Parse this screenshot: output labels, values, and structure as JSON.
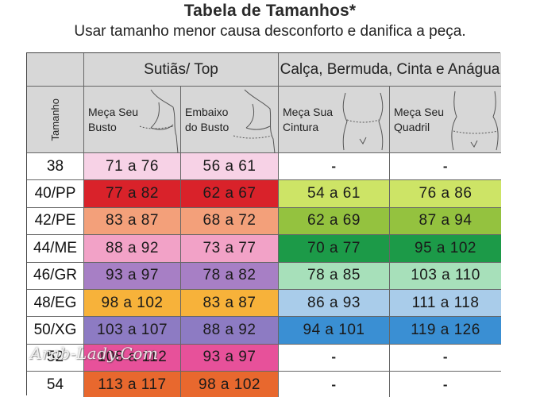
{
  "header": {
    "title": "Tabela de Tamanhos*",
    "subtitle": "Usar tamanho menor causa desconforto e danifica a peça."
  },
  "groups": {
    "top": "Sutiãs/ Top",
    "bottom": "Calça, Bermuda, Cinta e Anágua"
  },
  "columns": {
    "size": "Tamanho",
    "bust": [
      "Meça Seu",
      "Busto"
    ],
    "underbust": [
      "Embaixo",
      "do Busto"
    ],
    "waist": [
      "Meça Sua",
      "Cintura"
    ],
    "hip": [
      "Meça Seu",
      "Quadril"
    ]
  },
  "rows": [
    {
      "size": "38",
      "bust": "71 a 76",
      "underbust": "56 a 61",
      "waist": "-",
      "hip": "-"
    },
    {
      "size": "40/PP",
      "bust": "77 a 82",
      "underbust": "62 a 67",
      "waist": "54 a 61",
      "hip": "76 a 86"
    },
    {
      "size": "42/PE",
      "bust": "83 a 87",
      "underbust": "68 a 72",
      "waist": "62 a 69",
      "hip": "87 a 94"
    },
    {
      "size": "44/ME",
      "bust": "88 a 92",
      "underbust": "73 a 77",
      "waist": "70 a 77",
      "hip": "95 a 102"
    },
    {
      "size": "46/GR",
      "bust": "93 a 97",
      "underbust": "78 a 82",
      "waist": "78 a 85",
      "hip": "103 a 110"
    },
    {
      "size": "48/EG",
      "bust": "98 a 102",
      "underbust": "83 a 87",
      "waist": "86 a 93",
      "hip": "111 a 118"
    },
    {
      "size": "50/XG",
      "bust": "103 a 107",
      "underbust": "88 a 92",
      "waist": "94 a 101",
      "hip": "119 a 126"
    },
    {
      "size": "52",
      "bust": "108 a 112",
      "underbust": "93 a 97",
      "waist": "-",
      "hip": "-"
    },
    {
      "size": "54",
      "bust": "113 a 117",
      "underbust": "98 a 102",
      "waist": "-",
      "hip": "-"
    }
  ],
  "colors": {
    "top": [
      "#f7d2e6",
      "#d9222a",
      "#f3a07a",
      "#f2a2c7",
      "#a77fc5",
      "#f7b23a",
      "#8d7bc3",
      "#e7519a",
      "#e8682e"
    ],
    "bottom": [
      null,
      "#cde466",
      "#94c23f",
      "#1c9a48",
      "#a7e0ba",
      "#a9ccea",
      "#3a8fd3",
      null,
      null
    ],
    "header_bg": "#d7d7d7"
  },
  "watermark": "Arab-Lady.Com"
}
